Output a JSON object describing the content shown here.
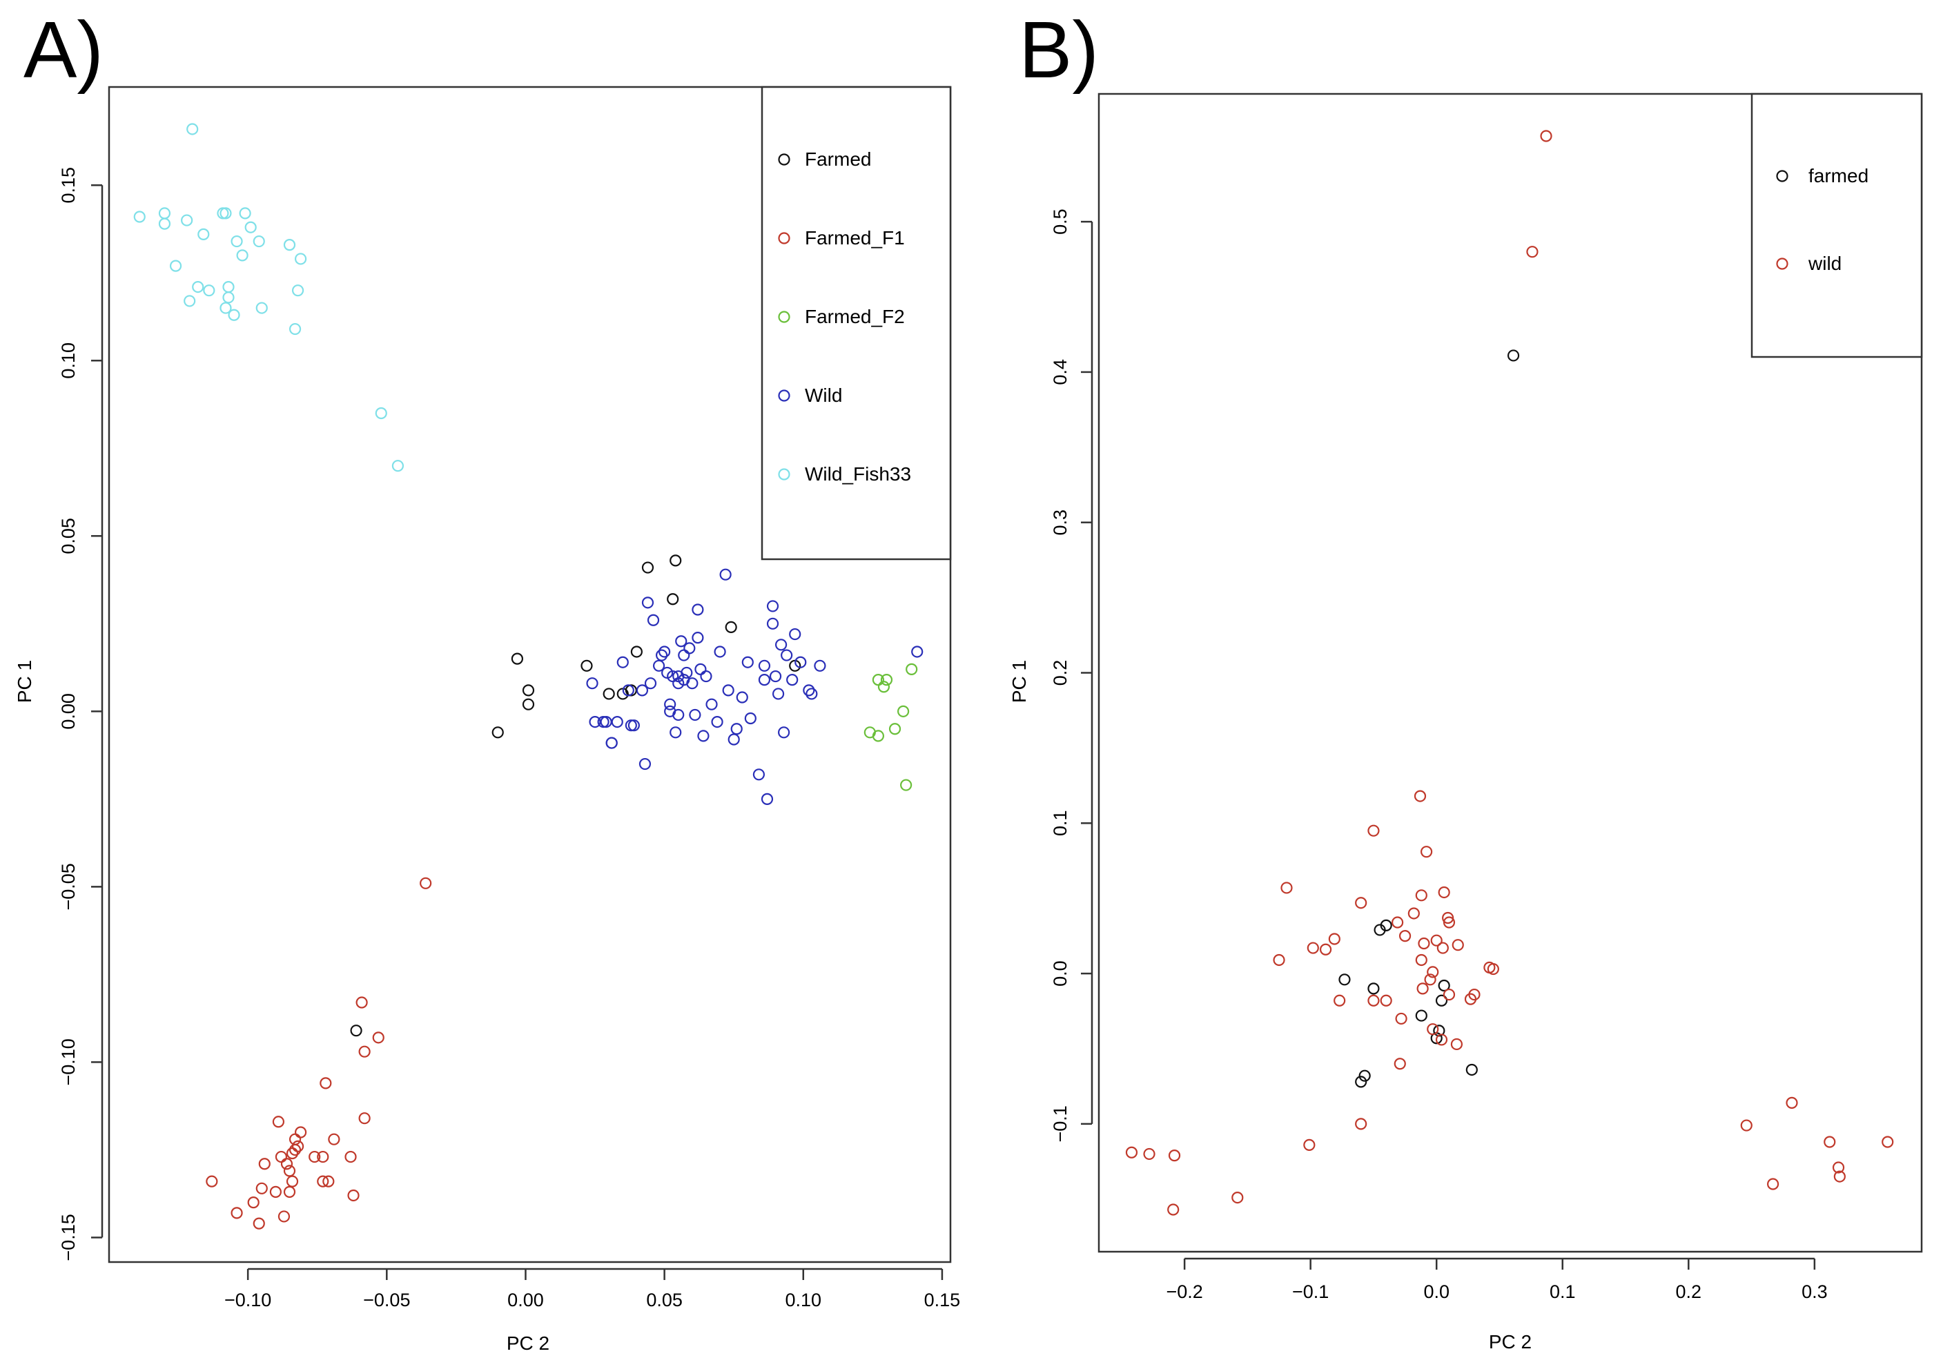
{
  "chart_data": [
    {
      "type": "scatter",
      "panel_label": "A)",
      "xlabel": "PC 2",
      "ylabel": "PC 1",
      "xlim": [
        -0.15,
        0.153
      ],
      "ylim": [
        -0.157,
        0.178
      ],
      "xticks": [
        -0.1,
        -0.05,
        0.0,
        0.05,
        0.1,
        0.15
      ],
      "xtick_labels": [
        "−0.10",
        "−0.05",
        "0.00",
        "0.05",
        "0.10",
        "0.15"
      ],
      "yticks": [
        0.15,
        0.1,
        0.05,
        0.0,
        -0.05,
        -0.1,
        -0.15
      ],
      "ytick_labels": [
        "0.15",
        "0.10",
        "0.05",
        "0.00",
        "−0.05",
        "−0.10",
        "−0.15"
      ],
      "legend": {
        "position": "top-right"
      },
      "series": [
        {
          "name": "Farmed",
          "color": "#111111",
          "points": [
            [
              -0.01,
              -0.006
            ],
            [
              -0.003,
              0.015
            ],
            [
              0.001,
              0.002
            ],
            [
              0.001,
              0.006
            ],
            [
              0.022,
              0.013
            ],
            [
              0.03,
              0.005
            ],
            [
              0.035,
              0.005
            ],
            [
              0.038,
              0.006
            ],
            [
              0.04,
              0.017
            ],
            [
              0.044,
              0.041
            ],
            [
              0.053,
              0.032
            ],
            [
              0.054,
              0.043
            ],
            [
              0.074,
              0.024
            ],
            [
              0.097,
              0.013
            ],
            [
              -0.061,
              -0.091
            ]
          ]
        },
        {
          "name": "Farmed_F1",
          "color": "#c0392b",
          "points": [
            [
              -0.036,
              -0.049
            ],
            [
              -0.059,
              -0.083
            ],
            [
              -0.053,
              -0.093
            ],
            [
              -0.058,
              -0.097
            ],
            [
              -0.072,
              -0.106
            ],
            [
              -0.058,
              -0.116
            ],
            [
              -0.089,
              -0.117
            ],
            [
              -0.081,
              -0.12
            ],
            [
              -0.083,
              -0.122
            ],
            [
              -0.082,
              -0.124
            ],
            [
              -0.083,
              -0.125
            ],
            [
              -0.084,
              -0.126
            ],
            [
              -0.069,
              -0.122
            ],
            [
              -0.073,
              -0.127
            ],
            [
              -0.076,
              -0.127
            ],
            [
              -0.063,
              -0.127
            ],
            [
              -0.088,
              -0.127
            ],
            [
              -0.094,
              -0.129
            ],
            [
              -0.086,
              -0.129
            ],
            [
              -0.085,
              -0.131
            ],
            [
              -0.084,
              -0.134
            ],
            [
              -0.073,
              -0.134
            ],
            [
              -0.071,
              -0.134
            ],
            [
              -0.113,
              -0.134
            ],
            [
              -0.095,
              -0.136
            ],
            [
              -0.09,
              -0.137
            ],
            [
              -0.085,
              -0.137
            ],
            [
              -0.062,
              -0.138
            ],
            [
              -0.098,
              -0.14
            ],
            [
              -0.104,
              -0.143
            ],
            [
              -0.087,
              -0.144
            ],
            [
              -0.096,
              -0.146
            ]
          ]
        },
        {
          "name": "Farmed_F2",
          "color": "#6abf3a",
          "points": [
            [
              0.127,
              0.009
            ],
            [
              0.13,
              0.009
            ],
            [
              0.129,
              0.007
            ],
            [
              0.139,
              0.012
            ],
            [
              0.136,
              0.0
            ],
            [
              0.133,
              -0.005
            ],
            [
              0.124,
              -0.006
            ],
            [
              0.127,
              -0.007
            ],
            [
              0.137,
              -0.021
            ]
          ]
        },
        {
          "name": "Wild",
          "color": "#2a2fb8",
          "points": [
            [
              0.024,
              0.008
            ],
            [
              0.025,
              -0.003
            ],
            [
              0.028,
              -0.003
            ],
            [
              0.029,
              -0.003
            ],
            [
              0.031,
              -0.009
            ],
            [
              0.031,
              -0.009
            ],
            [
              0.033,
              -0.003
            ],
            [
              0.035,
              0.014
            ],
            [
              0.037,
              0.006
            ],
            [
              0.038,
              -0.004
            ],
            [
              0.039,
              -0.004
            ],
            [
              0.042,
              0.006
            ],
            [
              0.043,
              -0.015
            ],
            [
              0.044,
              0.031
            ],
            [
              0.045,
              0.008
            ],
            [
              0.046,
              0.026
            ],
            [
              0.048,
              0.013
            ],
            [
              0.049,
              0.016
            ],
            [
              0.05,
              0.017
            ],
            [
              0.051,
              0.011
            ],
            [
              0.052,
              0.002
            ],
            [
              0.052,
              0.0
            ],
            [
              0.053,
              0.01
            ],
            [
              0.054,
              -0.006
            ],
            [
              0.055,
              0.008
            ],
            [
              0.055,
              0.01
            ],
            [
              0.055,
              -0.001
            ],
            [
              0.056,
              0.02
            ],
            [
              0.057,
              0.016
            ],
            [
              0.057,
              0.009
            ],
            [
              0.058,
              0.011
            ],
            [
              0.059,
              0.018
            ],
            [
              0.06,
              0.008
            ],
            [
              0.061,
              -0.001
            ],
            [
              0.062,
              0.021
            ],
            [
              0.062,
              0.029
            ],
            [
              0.063,
              0.012
            ],
            [
              0.064,
              -0.007
            ],
            [
              0.065,
              0.01
            ],
            [
              0.067,
              0.002
            ],
            [
              0.069,
              -0.003
            ],
            [
              0.07,
              0.017
            ],
            [
              0.072,
              0.039
            ],
            [
              0.073,
              0.006
            ],
            [
              0.075,
              -0.008
            ],
            [
              0.076,
              -0.005
            ],
            [
              0.078,
              0.004
            ],
            [
              0.08,
              0.014
            ],
            [
              0.081,
              -0.002
            ],
            [
              0.084,
              -0.018
            ],
            [
              0.086,
              0.013
            ],
            [
              0.086,
              0.009
            ],
            [
              0.087,
              -0.025
            ],
            [
              0.089,
              0.025
            ],
            [
              0.089,
              0.03
            ],
            [
              0.09,
              0.01
            ],
            [
              0.091,
              0.005
            ],
            [
              0.092,
              0.019
            ],
            [
              0.093,
              -0.006
            ],
            [
              0.094,
              0.016
            ],
            [
              0.096,
              0.009
            ],
            [
              0.097,
              0.022
            ],
            [
              0.099,
              0.014
            ],
            [
              0.102,
              0.006
            ],
            [
              0.103,
              0.005
            ],
            [
              0.106,
              0.013
            ],
            [
              0.141,
              0.017
            ]
          ]
        },
        {
          "name": "Wild_Fish33",
          "color": "#7fe0e8",
          "points": [
            [
              -0.12,
              0.166
            ],
            [
              -0.139,
              0.141
            ],
            [
              -0.13,
              0.142
            ],
            [
              -0.13,
              0.139
            ],
            [
              -0.122,
              0.14
            ],
            [
              -0.109,
              0.142
            ],
            [
              -0.108,
              0.142
            ],
            [
              -0.101,
              0.142
            ],
            [
              -0.099,
              0.138
            ],
            [
              -0.116,
              0.136
            ],
            [
              -0.104,
              0.134
            ],
            [
              -0.096,
              0.134
            ],
            [
              -0.085,
              0.133
            ],
            [
              -0.102,
              0.13
            ],
            [
              -0.081,
              0.129
            ],
            [
              -0.126,
              0.127
            ],
            [
              -0.118,
              0.121
            ],
            [
              -0.114,
              0.12
            ],
            [
              -0.107,
              0.121
            ],
            [
              -0.082,
              0.12
            ],
            [
              -0.121,
              0.117
            ],
            [
              -0.107,
              0.118
            ],
            [
              -0.108,
              0.115
            ],
            [
              -0.095,
              0.115
            ],
            [
              -0.105,
              0.113
            ],
            [
              -0.083,
              0.109
            ],
            [
              -0.052,
              0.085
            ],
            [
              -0.046,
              0.07
            ]
          ]
        }
      ]
    },
    {
      "type": "scatter",
      "panel_label": "B)",
      "xlabel": "PC 2",
      "ylabel": "PC 1",
      "xlim": [
        -0.268,
        0.385
      ],
      "ylim": [
        -0.185,
        0.585
      ],
      "xticks": [
        -0.2,
        -0.1,
        0.0,
        0.1,
        0.2,
        0.3
      ],
      "xtick_labels": [
        "−0.2",
        "−0.1",
        "0.0",
        "0.1",
        "0.2",
        "0.3"
      ],
      "yticks": [
        0.5,
        0.4,
        0.3,
        0.2,
        0.1,
        0.0,
        -0.1
      ],
      "ytick_labels": [
        "0.5",
        "0.4",
        "0.3",
        "0.2",
        "0.1",
        "0.0",
        "−0.1"
      ],
      "legend": {
        "position": "top-right"
      },
      "series": [
        {
          "name": "farmed",
          "color": "#111111",
          "points": [
            [
              0.061,
              0.411
            ],
            [
              -0.045,
              0.029
            ],
            [
              -0.04,
              0.032
            ],
            [
              -0.073,
              -0.004
            ],
            [
              -0.05,
              -0.01
            ],
            [
              -0.012,
              -0.028
            ],
            [
              0.006,
              -0.008
            ],
            [
              0.004,
              -0.018
            ],
            [
              0.002,
              -0.038
            ],
            [
              0.0,
              -0.043
            ],
            [
              -0.057,
              -0.068
            ],
            [
              -0.06,
              -0.072
            ],
            [
              0.028,
              -0.064
            ]
          ]
        },
        {
          "name": "wild",
          "color": "#c0392b",
          "points": [
            [
              0.087,
              0.557
            ],
            [
              0.076,
              0.48
            ],
            [
              -0.013,
              0.118
            ],
            [
              -0.05,
              0.095
            ],
            [
              -0.008,
              0.081
            ],
            [
              -0.119,
              0.057
            ],
            [
              -0.06,
              0.047
            ],
            [
              -0.012,
              0.052
            ],
            [
              0.006,
              0.054
            ],
            [
              -0.031,
              0.034
            ],
            [
              0.009,
              0.037
            ],
            [
              0.01,
              0.034
            ],
            [
              -0.018,
              0.04
            ],
            [
              -0.025,
              0.025
            ],
            [
              -0.098,
              0.017
            ],
            [
              -0.088,
              0.016
            ],
            [
              -0.081,
              0.023
            ],
            [
              -0.01,
              0.02
            ],
            [
              0.0,
              0.022
            ],
            [
              0.005,
              0.017
            ],
            [
              0.017,
              0.019
            ],
            [
              -0.125,
              0.009
            ],
            [
              -0.012,
              0.009
            ],
            [
              -0.003,
              0.001
            ],
            [
              0.042,
              0.004
            ],
            [
              0.045,
              0.003
            ],
            [
              -0.005,
              -0.004
            ],
            [
              -0.011,
              -0.01
            ],
            [
              0.01,
              -0.014
            ],
            [
              0.03,
              -0.014
            ],
            [
              0.027,
              -0.017
            ],
            [
              -0.077,
              -0.018
            ],
            [
              -0.05,
              -0.018
            ],
            [
              -0.04,
              -0.018
            ],
            [
              -0.028,
              -0.03
            ],
            [
              -0.003,
              -0.037
            ],
            [
              0.004,
              -0.044
            ],
            [
              0.016,
              -0.047
            ],
            [
              -0.029,
              -0.06
            ],
            [
              -0.06,
              -0.1
            ],
            [
              -0.101,
              -0.114
            ],
            [
              -0.242,
              -0.119
            ],
            [
              -0.228,
              -0.12
            ],
            [
              -0.208,
              -0.121
            ],
            [
              -0.209,
              -0.157
            ],
            [
              -0.158,
              -0.149
            ],
            [
              0.246,
              -0.101
            ],
            [
              0.282,
              -0.086
            ],
            [
              0.312,
              -0.112
            ],
            [
              0.319,
              -0.129
            ],
            [
              0.32,
              -0.135
            ],
            [
              0.358,
              -0.112
            ],
            [
              0.267,
              -0.14
            ]
          ]
        }
      ]
    }
  ]
}
